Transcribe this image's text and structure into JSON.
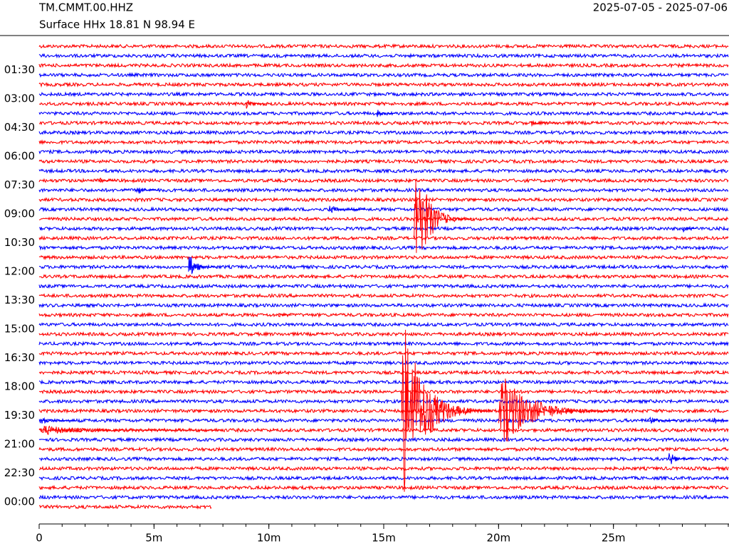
{
  "chart_data": {
    "type": "helicorder",
    "title": "TM.CMMT.00.HHZ",
    "subtitle": "Surface HHx  18.81 N 98.94 E",
    "date_range": "2025-07-05 - 2025-07-06",
    "colors": [
      "#ff0000",
      "#0000ff"
    ],
    "xlim": [
      0,
      30
    ],
    "xticks": [
      {
        "value": 0,
        "label": "0"
      },
      {
        "value": 5,
        "label": "5m"
      },
      {
        "value": 10,
        "label": "10m"
      },
      {
        "value": 15,
        "label": "15m"
      },
      {
        "value": 20,
        "label": "20m"
      },
      {
        "value": 25,
        "label": "25m"
      }
    ],
    "xminor_step": 1,
    "ylim": [
      0,
      24
    ],
    "yticks": [
      {
        "value": 1.5,
        "label": "01:30"
      },
      {
        "value": 3,
        "label": "03:00"
      },
      {
        "value": 4.5,
        "label": "04:30"
      },
      {
        "value": 6,
        "label": "06:00"
      },
      {
        "value": 7.5,
        "label": "07:30"
      },
      {
        "value": 9,
        "label": "09:00"
      },
      {
        "value": 10.5,
        "label": "10:30"
      },
      {
        "value": 12,
        "label": "12:00"
      },
      {
        "value": 13.5,
        "label": "13:30"
      },
      {
        "value": 15,
        "label": "15:00"
      },
      {
        "value": 16.5,
        "label": "16:30"
      },
      {
        "value": 18,
        "label": "18:00"
      },
      {
        "value": 19.5,
        "label": "19:30"
      },
      {
        "value": 21,
        "label": "21:00"
      },
      {
        "value": 22.5,
        "label": "22:30"
      },
      {
        "value": 24,
        "label": "00:00"
      }
    ],
    "last_row_end": 7.5,
    "events": [
      {
        "hour": 3,
        "minute": 9.0,
        "amplitude": 0.7,
        "duration": 0.6
      },
      {
        "hour": 3.5,
        "minute": 14.7,
        "amplitude": 0.6,
        "duration": 0.5
      },
      {
        "hour": 4,
        "minute": 21.4,
        "amplitude": 0.4,
        "duration": 0.8
      },
      {
        "hour": 7,
        "minute": 2.6,
        "amplitude": 0.4,
        "duration": 0.5
      },
      {
        "hour": 7.5,
        "minute": 4.3,
        "amplitude": 0.6,
        "duration": 0.6
      },
      {
        "hour": 8.5,
        "minute": 12.6,
        "amplitude": 0.6,
        "duration": 1.0
      },
      {
        "hour": 9,
        "minute": 16.3,
        "amplitude": 7.5,
        "duration": 1.6
      },
      {
        "hour": 9.5,
        "minute": 28.0,
        "amplitude": 0.6,
        "duration": 0.4
      },
      {
        "hour": 11.5,
        "minute": 6.5,
        "amplitude": 1.8,
        "duration": 0.8
      },
      {
        "hour": 14,
        "minute": 10.4,
        "amplitude": 0.5,
        "duration": 0.4
      },
      {
        "hour": 19,
        "minute": 15.75,
        "amplitude": 11,
        "duration": 2.5
      },
      {
        "hour": 19,
        "minute": 20.0,
        "amplitude": 4.5,
        "duration": 3.5
      },
      {
        "hour": 19.5,
        "minute": 0.0,
        "amplitude": 0.6,
        "duration": 1.0
      },
      {
        "hour": 19.5,
        "minute": 26.5,
        "amplitude": 0.6,
        "duration": 0.8
      },
      {
        "hour": 19.5,
        "minute": 29.3,
        "amplitude": 0.6,
        "duration": 0.6
      },
      {
        "hour": 20,
        "minute": 0.0,
        "amplitude": 0.6,
        "duration": 5.0
      },
      {
        "hour": 21.5,
        "minute": 27.4,
        "amplitude": 1.2,
        "duration": 0.6
      }
    ]
  }
}
